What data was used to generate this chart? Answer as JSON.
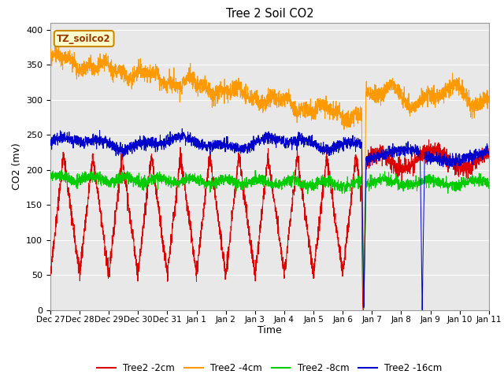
{
  "title": "Tree 2 Soil CO2",
  "xlabel": "Time",
  "ylabel": "CO2 (mv)",
  "ylim": [
    0,
    410
  ],
  "yticks": [
    0,
    50,
    100,
    150,
    200,
    250,
    300,
    350,
    400
  ],
  "plot_bg_color": "#e8e8e8",
  "grid_color": "white",
  "legend_label": "TZ_soilco2",
  "series_colors": {
    "2cm": "#dd0000",
    "4cm": "#ff9900",
    "8cm": "#00cc00",
    "16cm": "#0000cc"
  },
  "legend_entries": [
    "Tree2 -2cm",
    "Tree2 -4cm",
    "Tree2 -8cm",
    "Tree2 -16cm"
  ],
  "legend_colors": [
    "#dd0000",
    "#ff9900",
    "#00cc00",
    "#0000cc"
  ],
  "x_tick_labels": [
    "Dec 27",
    "Dec 28",
    "Dec 29",
    "Dec 30",
    "Dec 31",
    "Jan 1",
    "Jan 2",
    "Jan 3",
    "Jan 4",
    "Jan 5",
    "Jan 6",
    "Jan 7",
    "Jan 8",
    "Jan 9",
    "Jan 10",
    "Jan 11"
  ],
  "days": 15
}
